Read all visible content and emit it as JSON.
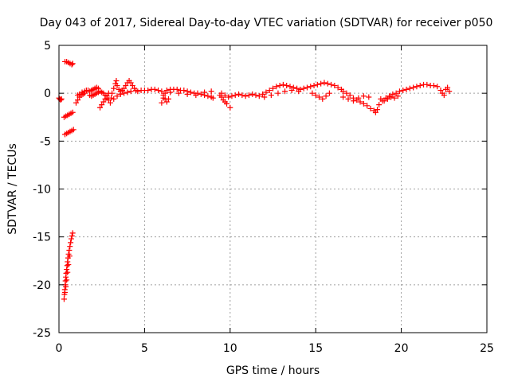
{
  "chart_data": {
    "type": "scatter",
    "title": "Day 043 of 2017, Sidereal Day-to-day VTEC variation (SDTVAR) for receiver p050",
    "xlabel": "GPS time / hours",
    "ylabel": "SDTVAR / TECUs",
    "xlim": [
      0,
      25
    ],
    "ylim": [
      -25,
      5
    ],
    "x_ticks": [
      0,
      5,
      10,
      15,
      20,
      25
    ],
    "y_ticks": [
      -25,
      -20,
      -15,
      -10,
      -5,
      0,
      5
    ],
    "x_tick_labels": [
      "0",
      "5",
      "10",
      "15",
      "20",
      "25"
    ],
    "y_tick_labels": [
      "-25",
      "-20",
      "-15",
      "-10",
      "-5",
      "0",
      "5"
    ],
    "grid": true,
    "marker": "+",
    "color": "#ff0000",
    "series": [
      {
        "name": "SDTVAR",
        "points": [
          [
            0.0,
            -0.5
          ],
          [
            0.05,
            -0.6
          ],
          [
            0.1,
            -0.7
          ],
          [
            0.15,
            -0.6
          ],
          [
            0.35,
            3.3
          ],
          [
            0.45,
            3.3
          ],
          [
            0.55,
            3.2
          ],
          [
            0.65,
            3.1
          ],
          [
            0.75,
            3.0
          ],
          [
            0.8,
            3.1
          ],
          [
            0.3,
            -2.5
          ],
          [
            0.4,
            -2.4
          ],
          [
            0.5,
            -2.3
          ],
          [
            0.6,
            -2.2
          ],
          [
            0.7,
            -2.1
          ],
          [
            0.8,
            -2.0
          ],
          [
            0.35,
            -4.3
          ],
          [
            0.45,
            -4.2
          ],
          [
            0.55,
            -4.1
          ],
          [
            0.65,
            -4.0
          ],
          [
            0.75,
            -3.9
          ],
          [
            0.85,
            -3.8
          ],
          [
            0.3,
            -21.5
          ],
          [
            0.32,
            -21.0
          ],
          [
            0.34,
            -20.5
          ],
          [
            0.36,
            -20.0
          ],
          [
            0.38,
            -19.6
          ],
          [
            0.4,
            -19.2
          ],
          [
            0.42,
            -18.8
          ],
          [
            0.45,
            -18.4
          ],
          [
            0.48,
            -18.0
          ],
          [
            0.5,
            -17.6
          ],
          [
            0.53,
            -17.2
          ],
          [
            0.56,
            -16.8
          ],
          [
            0.6,
            -16.4
          ],
          [
            0.64,
            -16.0
          ],
          [
            0.68,
            -15.6
          ],
          [
            0.72,
            -15.2
          ],
          [
            0.76,
            -14.9
          ],
          [
            0.8,
            -14.6
          ],
          [
            0.35,
            -20.8
          ],
          [
            0.4,
            -20.2
          ],
          [
            0.45,
            -19.5
          ],
          [
            0.5,
            -18.7
          ],
          [
            0.55,
            -17.9
          ],
          [
            0.62,
            -17.0
          ],
          [
            1.0,
            -1.0
          ],
          [
            1.1,
            -0.7
          ],
          [
            1.2,
            -0.4
          ],
          [
            1.3,
            -0.2
          ],
          [
            1.4,
            -0.1
          ],
          [
            1.5,
            0.0
          ],
          [
            1.1,
            -0.2
          ],
          [
            1.2,
            -0.1
          ],
          [
            1.35,
            0.1
          ],
          [
            1.5,
            0.2
          ],
          [
            1.6,
            0.3
          ],
          [
            1.7,
            0.3
          ],
          [
            1.8,
            0.2
          ],
          [
            1.9,
            0.3
          ],
          [
            2.0,
            0.4
          ],
          [
            2.1,
            0.5
          ],
          [
            2.2,
            0.6
          ],
          [
            2.3,
            0.5
          ],
          [
            1.8,
            -0.2
          ],
          [
            1.9,
            -0.3
          ],
          [
            2.0,
            -0.2
          ],
          [
            2.1,
            -0.1
          ],
          [
            2.2,
            0.0
          ],
          [
            2.3,
            0.1
          ],
          [
            2.4,
            0.2
          ],
          [
            2.5,
            0.1
          ],
          [
            2.6,
            0.0
          ],
          [
            2.7,
            -0.2
          ],
          [
            2.8,
            -0.5
          ],
          [
            2.9,
            -0.7
          ],
          [
            2.4,
            -1.5
          ],
          [
            2.5,
            -1.2
          ],
          [
            2.6,
            -0.9
          ],
          [
            2.7,
            -0.6
          ],
          [
            2.8,
            -0.3
          ],
          [
            2.9,
            0.0
          ],
          [
            3.0,
            -1.0
          ],
          [
            3.05,
            -0.5
          ],
          [
            3.1,
            0.0
          ],
          [
            3.2,
            0.5
          ],
          [
            3.3,
            1.0
          ],
          [
            3.35,
            1.3
          ],
          [
            3.4,
            0.8
          ],
          [
            3.5,
            0.4
          ],
          [
            3.6,
            0.2
          ],
          [
            3.7,
            0.3
          ],
          [
            3.8,
            0.5
          ],
          [
            3.9,
            0.8
          ],
          [
            4.0,
            1.1
          ],
          [
            4.1,
            1.3
          ],
          [
            4.2,
            1.1
          ],
          [
            4.3,
            0.8
          ],
          [
            4.4,
            0.5
          ],
          [
            4.5,
            0.3
          ],
          [
            3.2,
            -0.6
          ],
          [
            3.4,
            -0.3
          ],
          [
            3.6,
            -0.1
          ],
          [
            3.8,
            0.0
          ],
          [
            4.0,
            0.1
          ],
          [
            4.2,
            0.2
          ],
          [
            4.6,
            0.2
          ],
          [
            4.8,
            0.3
          ],
          [
            5.0,
            0.3
          ],
          [
            5.2,
            0.3
          ],
          [
            5.4,
            0.4
          ],
          [
            5.6,
            0.4
          ],
          [
            5.8,
            0.3
          ],
          [
            6.0,
            0.2
          ],
          [
            6.1,
            -0.2
          ],
          [
            6.2,
            -0.6
          ],
          [
            6.3,
            -0.9
          ],
          [
            6.4,
            -0.6
          ],
          [
            6.0,
            -1.0
          ],
          [
            6.1,
            -0.5
          ],
          [
            6.2,
            0.0
          ],
          [
            6.3,
            0.3
          ],
          [
            6.5,
            0.4
          ],
          [
            6.7,
            0.4
          ],
          [
            6.9,
            0.4
          ],
          [
            7.1,
            0.3
          ],
          [
            7.3,
            0.3
          ],
          [
            7.5,
            0.2
          ],
          [
            7.7,
            0.1
          ],
          [
            7.9,
            0.0
          ],
          [
            8.1,
            0.0
          ],
          [
            8.3,
            -0.1
          ],
          [
            8.5,
            -0.2
          ],
          [
            8.7,
            -0.3
          ],
          [
            8.9,
            -0.4
          ],
          [
            9.0,
            -0.5
          ],
          [
            6.5,
            0.1
          ],
          [
            7.0,
            0.0
          ],
          [
            7.5,
            -0.1
          ],
          [
            8.0,
            -0.2
          ],
          [
            8.5,
            0.1
          ],
          [
            8.9,
            0.2
          ],
          [
            9.4,
            -0.2
          ],
          [
            9.5,
            -0.4
          ],
          [
            9.6,
            -0.7
          ],
          [
            9.7,
            -0.9
          ],
          [
            9.8,
            -1.1
          ],
          [
            10.0,
            -1.5
          ],
          [
            9.5,
            0.0
          ],
          [
            9.7,
            -0.2
          ],
          [
            9.9,
            -0.4
          ],
          [
            10.1,
            -0.3
          ],
          [
            10.3,
            -0.2
          ],
          [
            10.5,
            -0.1
          ],
          [
            10.7,
            -0.2
          ],
          [
            10.9,
            -0.3
          ],
          [
            11.1,
            -0.2
          ],
          [
            11.3,
            -0.1
          ],
          [
            11.5,
            -0.2
          ],
          [
            11.7,
            -0.3
          ],
          [
            11.9,
            -0.1
          ],
          [
            12.1,
            0.1
          ],
          [
            12.3,
            0.3
          ],
          [
            12.5,
            0.5
          ],
          [
            12.7,
            0.7
          ],
          [
            12.9,
            0.8
          ],
          [
            13.1,
            0.9
          ],
          [
            13.3,
            0.8
          ],
          [
            13.5,
            0.7
          ],
          [
            13.7,
            0.6
          ],
          [
            13.9,
            0.5
          ],
          [
            14.1,
            0.4
          ],
          [
            12.0,
            -0.4
          ],
          [
            12.4,
            -0.2
          ],
          [
            12.8,
            0.0
          ],
          [
            13.2,
            0.2
          ],
          [
            13.6,
            0.3
          ],
          [
            14.0,
            0.2
          ],
          [
            14.3,
            0.5
          ],
          [
            14.5,
            0.6
          ],
          [
            14.7,
            0.7
          ],
          [
            14.9,
            0.8
          ],
          [
            15.1,
            0.9
          ],
          [
            15.3,
            1.0
          ],
          [
            15.5,
            1.1
          ],
          [
            15.7,
            1.0
          ],
          [
            15.9,
            0.9
          ],
          [
            16.1,
            0.8
          ],
          [
            16.3,
            0.6
          ],
          [
            16.5,
            0.4
          ],
          [
            14.8,
            0.0
          ],
          [
            15.0,
            -0.2
          ],
          [
            15.2,
            -0.4
          ],
          [
            15.4,
            -0.6
          ],
          [
            15.6,
            -0.3
          ],
          [
            15.8,
            0.0
          ],
          [
            16.6,
            0.2
          ],
          [
            16.8,
            0.0
          ],
          [
            17.0,
            -0.2
          ],
          [
            17.2,
            -0.5
          ],
          [
            17.4,
            -0.7
          ],
          [
            17.6,
            -0.9
          ],
          [
            17.8,
            -1.1
          ],
          [
            18.0,
            -1.3
          ],
          [
            18.2,
            -1.6
          ],
          [
            18.4,
            -1.8
          ],
          [
            18.5,
            -2.0
          ],
          [
            18.6,
            -1.7
          ],
          [
            16.6,
            -0.4
          ],
          [
            16.9,
            -0.6
          ],
          [
            17.2,
            -0.8
          ],
          [
            17.5,
            -0.5
          ],
          [
            17.8,
            -0.3
          ],
          [
            18.1,
            -0.4
          ],
          [
            18.7,
            -1.2
          ],
          [
            18.9,
            -0.8
          ],
          [
            19.1,
            -0.5
          ],
          [
            19.3,
            -0.3
          ],
          [
            19.5,
            -0.1
          ],
          [
            19.7,
            0.0
          ],
          [
            19.9,
            0.2
          ],
          [
            20.1,
            0.3
          ],
          [
            20.3,
            0.4
          ],
          [
            20.5,
            0.5
          ],
          [
            20.7,
            0.6
          ],
          [
            20.9,
            0.7
          ],
          [
            21.1,
            0.8
          ],
          [
            21.3,
            0.9
          ],
          [
            21.5,
            0.9
          ],
          [
            21.7,
            0.8
          ],
          [
            21.9,
            0.8
          ],
          [
            22.1,
            0.7
          ],
          [
            22.3,
            0.3
          ],
          [
            22.4,
            0.0
          ],
          [
            22.5,
            -0.2
          ],
          [
            22.6,
            0.4
          ],
          [
            22.7,
            0.6
          ],
          [
            22.8,
            0.2
          ],
          [
            18.8,
            -0.6
          ],
          [
            19.0,
            -0.8
          ],
          [
            19.2,
            -0.6
          ],
          [
            19.4,
            -0.4
          ],
          [
            19.6,
            -0.5
          ],
          [
            19.8,
            -0.3
          ]
        ]
      }
    ]
  }
}
